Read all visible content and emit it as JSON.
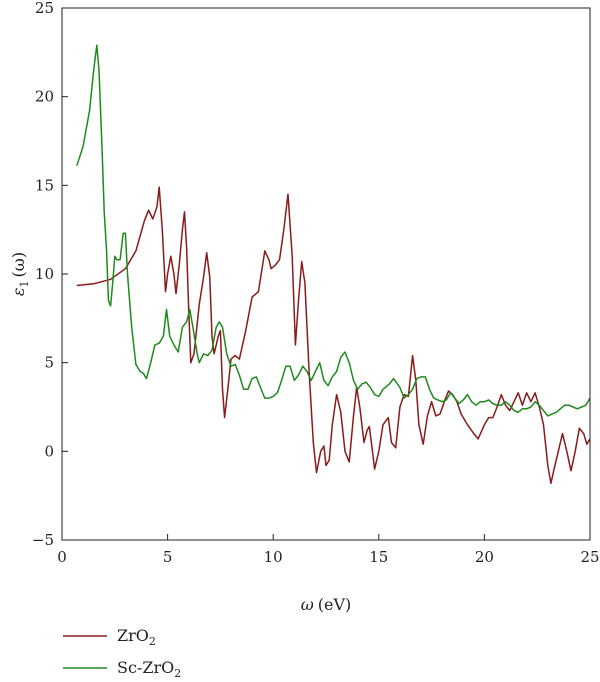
{
  "chart_data": {
    "type": "line",
    "title": "",
    "xlabel": {
      "symbol": "ω",
      "unit": "(eV)"
    },
    "ylabel": {
      "symbol": "ε",
      "subscript": "1",
      "arg": "(ω)"
    },
    "xlim": [
      0,
      25
    ],
    "ylim": [
      -5,
      25
    ],
    "xticks": [
      0,
      5,
      10,
      15,
      20,
      25
    ],
    "yticks": [
      -5,
      0,
      5,
      10,
      15,
      20,
      25
    ],
    "grid": false,
    "legend_position": "bottom-left",
    "series": [
      {
        "name": "ZrO2",
        "legend": {
          "base": "ZrO",
          "sub": "2"
        },
        "color": "#8b1a1a",
        "points": [
          [
            0.7,
            9.35
          ],
          [
            1.5,
            9.45
          ],
          [
            2.3,
            9.7
          ],
          [
            3.0,
            10.3
          ],
          [
            3.5,
            11.3
          ],
          [
            3.9,
            13.0
          ],
          [
            4.1,
            13.6
          ],
          [
            4.3,
            13.1
          ],
          [
            4.5,
            13.8
          ],
          [
            4.6,
            14.9
          ],
          [
            4.75,
            12.5
          ],
          [
            4.9,
            9.0
          ],
          [
            5.0,
            10.0
          ],
          [
            5.15,
            11.0
          ],
          [
            5.3,
            10.0
          ],
          [
            5.4,
            8.9
          ],
          [
            5.55,
            10.5
          ],
          [
            5.7,
            12.5
          ],
          [
            5.8,
            13.5
          ],
          [
            5.9,
            11.5
          ],
          [
            6.0,
            8.0
          ],
          [
            6.1,
            5.0
          ],
          [
            6.25,
            5.5
          ],
          [
            6.5,
            8.3
          ],
          [
            6.7,
            9.8
          ],
          [
            6.85,
            11.2
          ],
          [
            7.0,
            9.8
          ],
          [
            7.1,
            6.5
          ],
          [
            7.2,
            5.5
          ],
          [
            7.4,
            6.5
          ],
          [
            7.5,
            6.8
          ],
          [
            7.6,
            3.5
          ],
          [
            7.7,
            1.9
          ],
          [
            7.85,
            3.5
          ],
          [
            8.0,
            5.2
          ],
          [
            8.2,
            5.4
          ],
          [
            8.4,
            5.2
          ],
          [
            8.7,
            6.8
          ],
          [
            9.0,
            8.7
          ],
          [
            9.3,
            9.0
          ],
          [
            9.5,
            10.5
          ],
          [
            9.6,
            11.3
          ],
          [
            9.8,
            10.8
          ],
          [
            9.9,
            10.3
          ],
          [
            10.1,
            10.5
          ],
          [
            10.3,
            10.8
          ],
          [
            10.5,
            12.5
          ],
          [
            10.7,
            14.5
          ],
          [
            10.9,
            11.0
          ],
          [
            11.05,
            6.0
          ],
          [
            11.2,
            8.5
          ],
          [
            11.35,
            10.7
          ],
          [
            11.5,
            9.5
          ],
          [
            11.7,
            4.5
          ],
          [
            11.9,
            0.5
          ],
          [
            12.05,
            -1.2
          ],
          [
            12.25,
            0.0
          ],
          [
            12.4,
            0.3
          ],
          [
            12.5,
            -0.8
          ],
          [
            12.65,
            -0.5
          ],
          [
            12.8,
            1.5
          ],
          [
            13.0,
            3.2
          ],
          [
            13.2,
            2.2
          ],
          [
            13.4,
            0.0
          ],
          [
            13.6,
            -0.6
          ],
          [
            13.8,
            2.0
          ],
          [
            13.95,
            3.6
          ],
          [
            14.1,
            2.5
          ],
          [
            14.3,
            0.5
          ],
          [
            14.45,
            1.2
          ],
          [
            14.55,
            1.4
          ],
          [
            14.7,
            0.0
          ],
          [
            14.8,
            -1.0
          ],
          [
            15.0,
            0.0
          ],
          [
            15.2,
            1.5
          ],
          [
            15.45,
            1.9
          ],
          [
            15.6,
            0.5
          ],
          [
            15.8,
            0.2
          ],
          [
            16.0,
            2.5
          ],
          [
            16.2,
            3.2
          ],
          [
            16.4,
            3.1
          ],
          [
            16.6,
            5.4
          ],
          [
            16.75,
            4.0
          ],
          [
            16.9,
            1.5
          ],
          [
            17.1,
            0.4
          ],
          [
            17.3,
            2.0
          ],
          [
            17.5,
            2.8
          ],
          [
            17.7,
            2.0
          ],
          [
            17.9,
            2.1
          ],
          [
            18.1,
            2.8
          ],
          [
            18.3,
            3.4
          ],
          [
            18.5,
            3.2
          ],
          [
            18.7,
            2.8
          ],
          [
            18.9,
            2.1
          ],
          [
            19.2,
            1.5
          ],
          [
            19.5,
            1.0
          ],
          [
            19.7,
            0.7
          ],
          [
            20.0,
            1.5
          ],
          [
            20.2,
            1.9
          ],
          [
            20.4,
            1.9
          ],
          [
            20.6,
            2.5
          ],
          [
            20.8,
            3.2
          ],
          [
            21.0,
            2.6
          ],
          [
            21.2,
            2.3
          ],
          [
            21.4,
            2.8
          ],
          [
            21.6,
            3.3
          ],
          [
            21.8,
            2.6
          ],
          [
            22.0,
            3.3
          ],
          [
            22.2,
            2.8
          ],
          [
            22.4,
            3.3
          ],
          [
            22.6,
            2.5
          ],
          [
            22.8,
            1.5
          ],
          [
            23.0,
            -0.8
          ],
          [
            23.15,
            -1.8
          ],
          [
            23.3,
            -1.0
          ],
          [
            23.5,
            0.0
          ],
          [
            23.7,
            1.0
          ],
          [
            23.9,
            0.0
          ],
          [
            24.1,
            -1.1
          ],
          [
            24.3,
            0.0
          ],
          [
            24.5,
            1.3
          ],
          [
            24.7,
            1.0
          ],
          [
            24.85,
            0.4
          ],
          [
            25.0,
            0.7
          ]
        ]
      },
      {
        "name": "Sc-ZrO2",
        "legend": {
          "base": "Sc-ZrO",
          "sub": "2"
        },
        "color": "#1e8a1e",
        "points": [
          [
            0.7,
            16.1
          ],
          [
            1.0,
            17.2
          ],
          [
            1.3,
            19.2
          ],
          [
            1.5,
            21.5
          ],
          [
            1.65,
            22.9
          ],
          [
            1.75,
            21.5
          ],
          [
            1.9,
            17.0
          ],
          [
            2.0,
            13.5
          ],
          [
            2.1,
            11.5
          ],
          [
            2.2,
            8.5
          ],
          [
            2.3,
            8.2
          ],
          [
            2.4,
            9.5
          ],
          [
            2.5,
            11.0
          ],
          [
            2.6,
            10.8
          ],
          [
            2.75,
            10.8
          ],
          [
            2.9,
            12.3
          ],
          [
            3.0,
            12.3
          ],
          [
            3.1,
            10.0
          ],
          [
            3.3,
            7.0
          ],
          [
            3.5,
            4.9
          ],
          [
            3.7,
            4.5
          ],
          [
            3.85,
            4.4
          ],
          [
            4.0,
            4.1
          ],
          [
            4.2,
            5.0
          ],
          [
            4.4,
            6.0
          ],
          [
            4.6,
            6.1
          ],
          [
            4.8,
            6.5
          ],
          [
            4.95,
            8.0
          ],
          [
            5.1,
            6.5
          ],
          [
            5.3,
            6.0
          ],
          [
            5.5,
            5.6
          ],
          [
            5.7,
            7.0
          ],
          [
            5.9,
            7.3
          ],
          [
            6.05,
            8.0
          ],
          [
            6.2,
            7.0
          ],
          [
            6.4,
            5.5
          ],
          [
            6.5,
            5.0
          ],
          [
            6.7,
            5.5
          ],
          [
            6.9,
            5.4
          ],
          [
            7.1,
            5.7
          ],
          [
            7.3,
            7.0
          ],
          [
            7.45,
            7.3
          ],
          [
            7.6,
            7.0
          ],
          [
            7.8,
            5.5
          ],
          [
            8.0,
            4.8
          ],
          [
            8.2,
            4.9
          ],
          [
            8.4,
            4.3
          ],
          [
            8.6,
            3.5
          ],
          [
            8.8,
            3.5
          ],
          [
            9.0,
            4.1
          ],
          [
            9.2,
            4.2
          ],
          [
            9.4,
            3.6
          ],
          [
            9.6,
            3.0
          ],
          [
            9.8,
            3.0
          ],
          [
            10.0,
            3.1
          ],
          [
            10.2,
            3.3
          ],
          [
            10.4,
            4.0
          ],
          [
            10.6,
            4.8
          ],
          [
            10.8,
            4.8
          ],
          [
            11.0,
            4.0
          ],
          [
            11.2,
            4.3
          ],
          [
            11.4,
            4.8
          ],
          [
            11.6,
            4.5
          ],
          [
            11.8,
            4.0
          ],
          [
            12.0,
            4.5
          ],
          [
            12.2,
            5.0
          ],
          [
            12.4,
            4.0
          ],
          [
            12.6,
            3.7
          ],
          [
            12.8,
            4.2
          ],
          [
            13.0,
            4.5
          ],
          [
            13.2,
            5.3
          ],
          [
            13.4,
            5.6
          ],
          [
            13.6,
            5.0
          ],
          [
            13.8,
            4.0
          ],
          [
            14.0,
            3.5
          ],
          [
            14.2,
            3.8
          ],
          [
            14.4,
            3.9
          ],
          [
            14.6,
            3.6
          ],
          [
            14.8,
            3.2
          ],
          [
            15.0,
            3.1
          ],
          [
            15.2,
            3.5
          ],
          [
            15.5,
            3.8
          ],
          [
            15.7,
            4.1
          ],
          [
            16.0,
            3.6
          ],
          [
            16.2,
            3.0
          ],
          [
            16.4,
            3.2
          ],
          [
            16.6,
            3.5
          ],
          [
            16.8,
            4.1
          ],
          [
            17.0,
            4.2
          ],
          [
            17.2,
            4.2
          ],
          [
            17.4,
            3.5
          ],
          [
            17.6,
            3.0
          ],
          [
            17.8,
            2.9
          ],
          [
            18.0,
            2.8
          ],
          [
            18.2,
            2.9
          ],
          [
            18.4,
            3.3
          ],
          [
            18.6,
            3.0
          ],
          [
            18.8,
            2.7
          ],
          [
            19.0,
            2.9
          ],
          [
            19.2,
            3.2
          ],
          [
            19.4,
            2.8
          ],
          [
            19.6,
            2.6
          ],
          [
            19.8,
            2.8
          ],
          [
            20.0,
            2.8
          ],
          [
            20.2,
            2.9
          ],
          [
            20.4,
            2.7
          ],
          [
            20.6,
            2.6
          ],
          [
            20.8,
            2.6
          ],
          [
            21.0,
            2.8
          ],
          [
            21.2,
            2.6
          ],
          [
            21.4,
            2.3
          ],
          [
            21.6,
            2.2
          ],
          [
            21.8,
            2.4
          ],
          [
            22.0,
            2.4
          ],
          [
            22.2,
            2.5
          ],
          [
            22.4,
            2.8
          ],
          [
            22.6,
            2.6
          ],
          [
            22.8,
            2.3
          ],
          [
            23.0,
            2.0
          ],
          [
            23.2,
            2.1
          ],
          [
            23.4,
            2.2
          ],
          [
            23.6,
            2.4
          ],
          [
            23.8,
            2.6
          ],
          [
            24.0,
            2.6
          ],
          [
            24.2,
            2.5
          ],
          [
            24.4,
            2.4
          ],
          [
            24.6,
            2.5
          ],
          [
            24.8,
            2.6
          ],
          [
            25.0,
            3.0
          ]
        ]
      }
    ]
  }
}
